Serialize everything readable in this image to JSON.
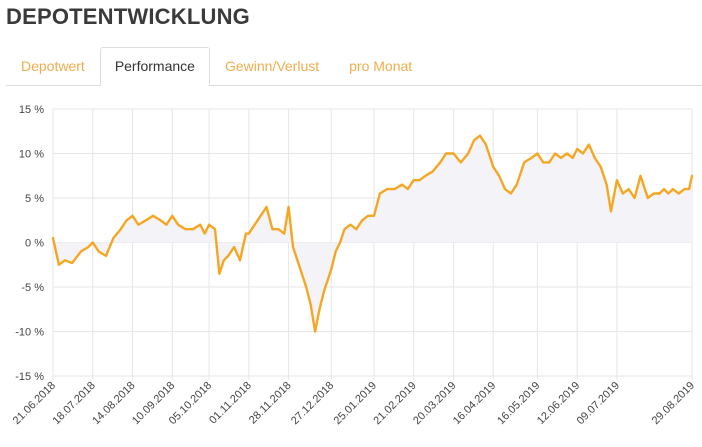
{
  "page": {
    "title": "DEPOTENTWICKLUNG"
  },
  "tabs": [
    {
      "label": "Depotwert",
      "active": false
    },
    {
      "label": "Performance",
      "active": true
    },
    {
      "label": "Gewinn/Verlust",
      "active": false
    },
    {
      "label": "pro Monat",
      "active": false
    }
  ],
  "colors": {
    "accent": "#f5a623",
    "tab_link": "#f0ad4e",
    "area_fill": "#f4f4f8",
    "grid": "#e6e6e6"
  },
  "chart_data": {
    "type": "area",
    "ylim": [
      -15,
      15
    ],
    "grid": true,
    "y_ticks": [
      15,
      10,
      5,
      0,
      -5,
      -10,
      -15
    ],
    "y_tick_labels": [
      "15 %",
      "10 %",
      "5 %",
      "0 %",
      "-5 %",
      "-10 %",
      "-15 %"
    ],
    "x_range": [
      "2018-06-21",
      "2019-08-29"
    ],
    "x_ticks": [
      "2018-06-21",
      "2018-07-18",
      "2018-08-14",
      "2018-09-10",
      "2018-10-05",
      "2018-11-01",
      "2018-11-28",
      "2018-12-27",
      "2019-01-25",
      "2019-02-21",
      "2019-03-20",
      "2019-04-16",
      "2019-05-16",
      "2019-06-12",
      "2019-07-09",
      "2019-08-29"
    ],
    "x_tick_labels": [
      "21.06.2018",
      "18.07.2018",
      "14.08.2018",
      "10.09.2018",
      "05.10.2018",
      "01.11.2018",
      "28.11.2018",
      "27.12.2018",
      "25.01.2019",
      "21.02.2019",
      "20.03.2019",
      "16.04.2019",
      "16.05.2019",
      "12.06.2019",
      "09.07.2019",
      "29.08.2019"
    ],
    "series": [
      {
        "x": [
          "2018-06-21",
          "2018-06-25",
          "2018-06-29",
          "2018-07-04",
          "2018-07-10",
          "2018-07-15",
          "2018-07-18",
          "2018-07-22",
          "2018-07-27",
          "2018-08-01",
          "2018-08-06",
          "2018-08-10",
          "2018-08-14",
          "2018-08-18",
          "2018-08-23",
          "2018-08-28",
          "2018-09-02",
          "2018-09-06",
          "2018-09-10",
          "2018-09-14",
          "2018-09-19",
          "2018-09-24",
          "2018-09-29",
          "2018-10-02",
          "2018-10-05",
          "2018-10-09",
          "2018-10-12",
          "2018-10-15",
          "2018-10-18",
          "2018-10-22",
          "2018-10-26",
          "2018-10-30",
          "2018-11-01",
          "2018-11-05",
          "2018-11-09",
          "2018-11-13",
          "2018-11-17",
          "2018-11-21",
          "2018-11-25",
          "2018-11-28",
          "2018-12-01",
          "2018-12-04",
          "2018-12-07",
          "2018-12-10",
          "2018-12-13",
          "2018-12-16",
          "2018-12-19",
          "2018-12-22",
          "2018-12-27",
          "2018-12-30",
          "2019-01-02",
          "2019-01-05",
          "2019-01-09",
          "2019-01-13",
          "2019-01-17",
          "2019-01-21",
          "2019-01-25",
          "2019-01-29",
          "2019-02-03",
          "2019-02-08",
          "2019-02-13",
          "2019-02-17",
          "2019-02-21",
          "2019-02-25",
          "2019-03-01",
          "2019-03-06",
          "2019-03-11",
          "2019-03-15",
          "2019-03-20",
          "2019-03-25",
          "2019-03-30",
          "2019-04-03",
          "2019-04-07",
          "2019-04-11",
          "2019-04-16",
          "2019-04-20",
          "2019-04-24",
          "2019-04-28",
          "2019-05-02",
          "2019-05-07",
          "2019-05-12",
          "2019-05-16",
          "2019-05-20",
          "2019-05-24",
          "2019-05-28",
          "2019-06-01",
          "2019-06-05",
          "2019-06-09",
          "2019-06-12",
          "2019-06-16",
          "2019-06-20",
          "2019-06-24",
          "2019-06-28",
          "2019-07-02",
          "2019-07-05",
          "2019-07-09",
          "2019-07-13",
          "2019-07-17",
          "2019-07-21",
          "2019-07-25",
          "2019-07-30",
          "2019-08-03",
          "2019-08-07",
          "2019-08-10",
          "2019-08-13",
          "2019-08-16",
          "2019-08-20",
          "2019-08-24",
          "2019-08-27",
          "2019-08-29"
        ],
        "values": [
          0.5,
          -2.5,
          -2.0,
          -2.3,
          -1.0,
          -0.5,
          0.0,
          -1.0,
          -1.5,
          0.5,
          1.5,
          2.5,
          3.0,
          2.0,
          2.5,
          3.0,
          2.5,
          2.0,
          3.0,
          2.0,
          1.5,
          1.5,
          2.0,
          1.0,
          2.0,
          1.5,
          -3.5,
          -2.0,
          -1.5,
          -0.5,
          -2.0,
          1.0,
          1.0,
          2.0,
          3.0,
          4.0,
          1.5,
          1.5,
          1.0,
          4.0,
          -0.5,
          -2.0,
          -3.5,
          -5.0,
          -7.0,
          -10.0,
          -7.5,
          -5.5,
          -3.0,
          -1.0,
          0.0,
          1.5,
          2.0,
          1.5,
          2.5,
          3.0,
          3.0,
          5.5,
          6.0,
          6.0,
          6.5,
          6.0,
          7.0,
          7.0,
          7.5,
          8.0,
          9.0,
          10.0,
          10.0,
          9.0,
          10.0,
          11.5,
          12.0,
          11.0,
          8.5,
          7.5,
          6.0,
          5.5,
          6.5,
          9.0,
          9.5,
          10.0,
          9.0,
          9.0,
          10.0,
          9.5,
          10.0,
          9.5,
          10.5,
          10.0,
          11.0,
          9.5,
          8.5,
          6.5,
          3.5,
          7.0,
          5.5,
          6.0,
          5.0,
          7.5,
          5.0,
          5.5,
          5.5,
          6.0,
          5.5,
          6.0,
          5.5,
          6.0,
          6.0,
          7.5
        ]
      }
    ]
  }
}
